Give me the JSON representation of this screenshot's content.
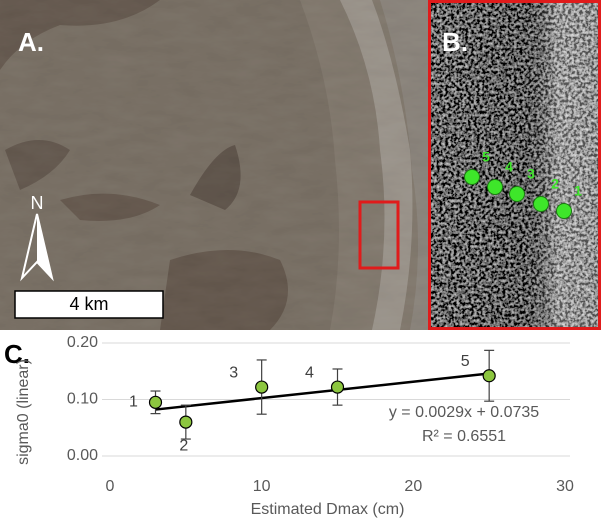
{
  "panel_a": {
    "label": "A.",
    "north": "N",
    "scale_bar": "4 km"
  },
  "panel_b": {
    "label": "B.",
    "point_labels": [
      "5",
      "4",
      "3",
      "2",
      "1"
    ]
  },
  "chart_data": {
    "type": "scatter",
    "panel_label": "C.",
    "x": [
      3,
      5,
      10,
      15,
      25
    ],
    "values": [
      0.095,
      0.06,
      0.122,
      0.122,
      0.142
    ],
    "errors": [
      0.02,
      0.03,
      0.048,
      0.032,
      0.045
    ],
    "point_labels": [
      "1",
      "2",
      "3",
      "4",
      "5"
    ],
    "color": "#8cc63f",
    "xlabel": "Estimated Dmax (cm)",
    "ylabel": "sigma0 (linear)",
    "xlim": [
      0,
      30
    ],
    "xticks": [
      0,
      10,
      20,
      30
    ],
    "ylim": [
      0,
      0.2
    ],
    "yticks": [
      {
        "value": 0,
        "label": "0.00"
      },
      {
        "value": 0.1,
        "label": "0.10"
      },
      {
        "value": 0.2,
        "label": "0.20"
      }
    ],
    "grid": true,
    "trendline": {
      "slope": 0.0029,
      "intercept": 0.0735,
      "label": "y = 0.0029x + 0.0735",
      "r2_label": "R² = 0.6551"
    }
  }
}
